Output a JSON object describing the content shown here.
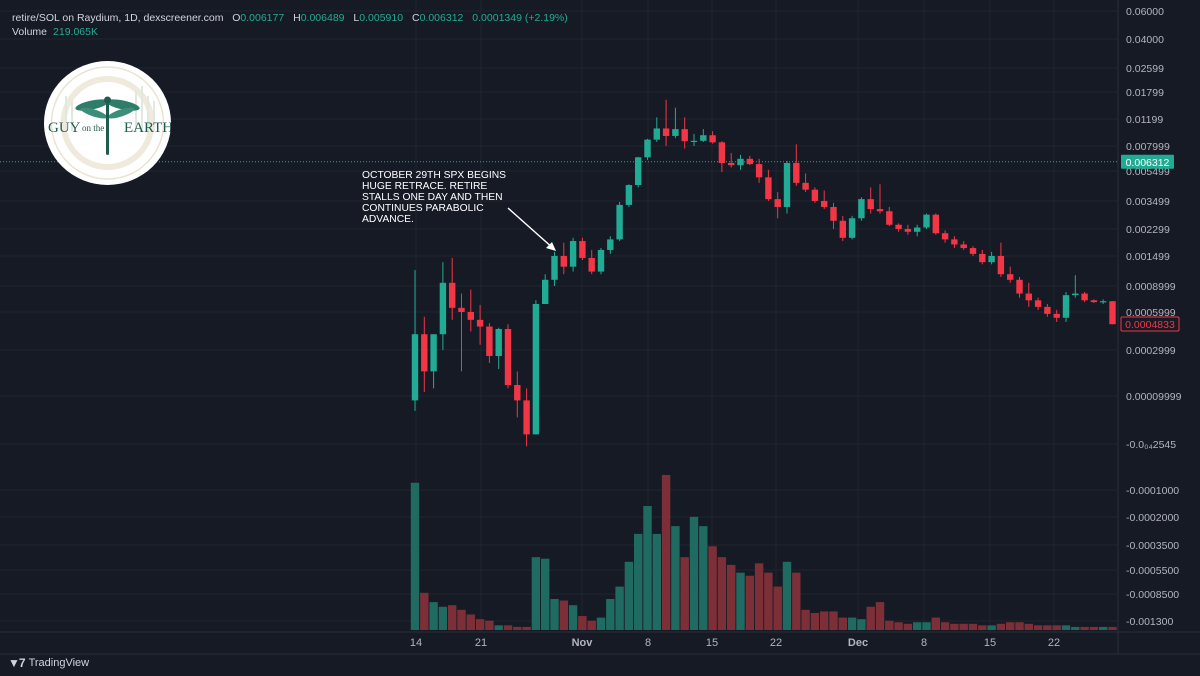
{
  "header": {
    "title": "retire/SOL on Raydium, 1D, dexscreener.com",
    "o_label": "O",
    "o_value": "0.006177",
    "h_label": "H",
    "h_value": "0.006489",
    "l_label": "L",
    "l_value": "0.005910",
    "c_label": "C",
    "c_value": "0.006312",
    "change": "0.0001349 (+2.19%)",
    "volume_label": "Volume",
    "volume_value": "219.065K"
  },
  "logo": {
    "text_left": "GUY",
    "text_mid": "on the",
    "text_right": "EARTH"
  },
  "annotation": "OCTOBER 29TH SPX BEGINS HUGE RETRACE. RETIRE STALLS ONE DAY AND THEN CONTINUES PARABOLIC ADVANCE.",
  "footer": {
    "brand": "TradingView",
    "brand_icon": "tradingview-logo-icon"
  },
  "colors": {
    "up": "#22ab94",
    "down": "#f23645",
    "up_vol": "#1f6b61",
    "down_vol": "#7d2f37",
    "bg": "#161a25",
    "grid": "#1f2430",
    "text": "#b2b5be"
  },
  "chart_data": {
    "type": "candlestick",
    "price_axis_labels": [
      "0.06000",
      "0.04000",
      "0.02599",
      "0.01799",
      "0.01199",
      "0.007999",
      "0.005499",
      "0.003499",
      "0.002299",
      "0.001499",
      "0.0008999",
      "0.0005999",
      "0.0002999",
      "0.00009999",
      "-0.0₀₄2545"
    ],
    "volume_axis_labels": [
      "-0.0001000",
      "-0.0002000",
      "-0.0003500",
      "-0.0005500",
      "-0.0008500",
      "-0.001300"
    ],
    "last_price_label": "0.006312",
    "current_price_label": "0.0004833",
    "x_tick_labels": [
      "14",
      "21",
      "Nov",
      "8",
      "15",
      "22",
      "Dec",
      "8",
      "15",
      "22"
    ],
    "candles": [
      {
        "o": 9e-05,
        "h": 0.00118,
        "l": 7e-05,
        "c": 0.0004
      },
      {
        "o": 0.0004,
        "h": 0.00055,
        "l": 0.00011,
        "c": 0.00018
      },
      {
        "o": 0.00018,
        "h": 0.00039,
        "l": 0.00012,
        "c": 0.0004
      },
      {
        "o": 0.0004,
        "h": 0.00135,
        "l": 0.0003,
        "c": 0.00095
      },
      {
        "o": 0.00095,
        "h": 0.00145,
        "l": 0.00052,
        "c": 0.00064
      },
      {
        "o": 0.00064,
        "h": 0.0008,
        "l": 0.00018,
        "c": 0.0006
      },
      {
        "o": 0.0006,
        "h": 0.00085,
        "l": 0.00042,
        "c": 0.00052
      },
      {
        "o": 0.00052,
        "h": 0.00067,
        "l": 0.00033,
        "c": 0.00046
      },
      {
        "o": 0.00046,
        "h": 0.00049,
        "l": 0.00022,
        "c": 0.00026
      },
      {
        "o": 0.00026,
        "h": 0.00045,
        "l": 0.00019,
        "c": 0.00044
      },
      {
        "o": 0.00044,
        "h": 0.00048,
        "l": 0.00012,
        "c": 0.00013
      },
      {
        "o": 0.00013,
        "h": 0.00018,
        "l": 6e-05,
        "c": 9e-05
      },
      {
        "o": 9e-05,
        "h": 0.00012,
        "l": 3e-05,
        "c": 4e-05
      },
      {
        "o": 4e-05,
        "h": 0.00072,
        "l": 4e-05,
        "c": 0.00068
      },
      {
        "o": 0.00068,
        "h": 0.0011,
        "l": 0.00068,
        "c": 0.001
      },
      {
        "o": 0.001,
        "h": 0.0016,
        "l": 0.0009,
        "c": 0.0015
      },
      {
        "o": 0.0015,
        "h": 0.00185,
        "l": 0.0011,
        "c": 0.00125
      },
      {
        "o": 0.00125,
        "h": 0.002,
        "l": 0.00115,
        "c": 0.0019
      },
      {
        "o": 0.0019,
        "h": 0.002,
        "l": 0.0014,
        "c": 0.00145
      },
      {
        "o": 0.00145,
        "h": 0.00165,
        "l": 0.0011,
        "c": 0.00115
      },
      {
        "o": 0.00115,
        "h": 0.0017,
        "l": 0.0011,
        "c": 0.00165
      },
      {
        "o": 0.00165,
        "h": 0.00205,
        "l": 0.00155,
        "c": 0.00195
      },
      {
        "o": 0.00195,
        "h": 0.00345,
        "l": 0.0019,
        "c": 0.0033
      },
      {
        "o": 0.0033,
        "h": 0.0045,
        "l": 0.0032,
        "c": 0.00445
      },
      {
        "o": 0.00445,
        "h": 0.0068,
        "l": 0.0043,
        "c": 0.00675
      },
      {
        "o": 0.00675,
        "h": 0.0089,
        "l": 0.0065,
        "c": 0.0088
      },
      {
        "o": 0.0088,
        "h": 0.0123,
        "l": 0.0085,
        "c": 0.0104
      },
      {
        "o": 0.0104,
        "h": 0.016,
        "l": 0.008,
        "c": 0.0093
      },
      {
        "o": 0.0093,
        "h": 0.0142,
        "l": 0.009,
        "c": 0.0103
      },
      {
        "o": 0.0103,
        "h": 0.0123,
        "l": 0.0077,
        "c": 0.0086
      },
      {
        "o": 0.0086,
        "h": 0.0096,
        "l": 0.008,
        "c": 0.00865
      },
      {
        "o": 0.00865,
        "h": 0.0103,
        "l": 0.0085,
        "c": 0.0094
      },
      {
        "o": 0.0094,
        "h": 0.01,
        "l": 0.0083,
        "c": 0.00845
      },
      {
        "o": 0.00845,
        "h": 0.0086,
        "l": 0.0054,
        "c": 0.0062
      },
      {
        "o": 0.0062,
        "h": 0.0072,
        "l": 0.0058,
        "c": 0.006
      },
      {
        "o": 0.006,
        "h": 0.007,
        "l": 0.0056,
        "c": 0.0066
      },
      {
        "o": 0.0066,
        "h": 0.0069,
        "l": 0.006,
        "c": 0.0061
      },
      {
        "o": 0.0061,
        "h": 0.0066,
        "l": 0.0046,
        "c": 0.005
      },
      {
        "o": 0.005,
        "h": 0.0056,
        "l": 0.0035,
        "c": 0.0036
      },
      {
        "o": 0.0036,
        "h": 0.004,
        "l": 0.0027,
        "c": 0.0032
      },
      {
        "o": 0.0032,
        "h": 0.0064,
        "l": 0.0029,
        "c": 0.0062
      },
      {
        "o": 0.0062,
        "h": 0.0082,
        "l": 0.0044,
        "c": 0.0046
      },
      {
        "o": 0.0046,
        "h": 0.0053,
        "l": 0.004,
        "c": 0.00415
      },
      {
        "o": 0.00415,
        "h": 0.0043,
        "l": 0.0034,
        "c": 0.0035
      },
      {
        "o": 0.0035,
        "h": 0.0041,
        "l": 0.0031,
        "c": 0.0032
      },
      {
        "o": 0.0032,
        "h": 0.0034,
        "l": 0.0023,
        "c": 0.0026
      },
      {
        "o": 0.0026,
        "h": 0.0028,
        "l": 0.0019,
        "c": 0.002
      },
      {
        "o": 0.002,
        "h": 0.0028,
        "l": 0.00195,
        "c": 0.0027
      },
      {
        "o": 0.0027,
        "h": 0.0037,
        "l": 0.0026,
        "c": 0.0036
      },
      {
        "o": 0.0036,
        "h": 0.0043,
        "l": 0.0029,
        "c": 0.0031
      },
      {
        "o": 0.0031,
        "h": 0.0045,
        "l": 0.0029,
        "c": 0.003
      },
      {
        "o": 0.003,
        "h": 0.0032,
        "l": 0.0024,
        "c": 0.00245
      },
      {
        "o": 0.00245,
        "h": 0.0025,
        "l": 0.0022,
        "c": 0.0023
      },
      {
        "o": 0.0023,
        "h": 0.00245,
        "l": 0.0021,
        "c": 0.0022
      },
      {
        "o": 0.0022,
        "h": 0.00245,
        "l": 0.00205,
        "c": 0.00235
      },
      {
        "o": 0.00235,
        "h": 0.0029,
        "l": 0.0023,
        "c": 0.00285
      },
      {
        "o": 0.00285,
        "h": 0.0029,
        "l": 0.0021,
        "c": 0.00215
      },
      {
        "o": 0.00215,
        "h": 0.00225,
        "l": 0.00185,
        "c": 0.00195
      },
      {
        "o": 0.00195,
        "h": 0.00205,
        "l": 0.0017,
        "c": 0.0018
      },
      {
        "o": 0.0018,
        "h": 0.0019,
        "l": 0.00165,
        "c": 0.0017
      },
      {
        "o": 0.0017,
        "h": 0.00175,
        "l": 0.0015,
        "c": 0.00155
      },
      {
        "o": 0.00155,
        "h": 0.00165,
        "l": 0.0013,
        "c": 0.00135
      },
      {
        "o": 0.00135,
        "h": 0.0016,
        "l": 0.0013,
        "c": 0.0015
      },
      {
        "o": 0.0015,
        "h": 0.00185,
        "l": 0.00105,
        "c": 0.0011
      },
      {
        "o": 0.0011,
        "h": 0.00125,
        "l": 0.00095,
        "c": 0.001
      },
      {
        "o": 0.001,
        "h": 0.00105,
        "l": 0.00075,
        "c": 0.0008
      },
      {
        "o": 0.0008,
        "h": 0.00095,
        "l": 0.00065,
        "c": 0.00072
      },
      {
        "o": 0.00072,
        "h": 0.00075,
        "l": 0.00062,
        "c": 0.00065
      },
      {
        "o": 0.00065,
        "h": 0.00068,
        "l": 0.00055,
        "c": 0.00058
      },
      {
        "o": 0.00058,
        "h": 0.00062,
        "l": 0.0005,
        "c": 0.00054
      },
      {
        "o": 0.00054,
        "h": 0.00082,
        "l": 0.0005,
        "c": 0.00078
      },
      {
        "o": 0.00078,
        "h": 0.00108,
        "l": 0.00075,
        "c": 0.0008
      },
      {
        "o": 0.0008,
        "h": 0.00082,
        "l": 0.0007,
        "c": 0.00072
      },
      {
        "o": 0.00072,
        "h": 0.00073,
        "l": 0.00069,
        "c": 0.0007
      },
      {
        "o": 0.0007,
        "h": 0.00073,
        "l": 0.00068,
        "c": 0.00071
      },
      {
        "o": 0.00071,
        "h": 0.00071,
        "l": 0.00048,
        "c": 0.00048
      }
    ],
    "volumes": [
      0.95,
      0.24,
      0.18,
      0.15,
      0.16,
      0.13,
      0.1,
      0.07,
      0.06,
      0.03,
      0.03,
      0.02,
      0.02,
      0.47,
      0.46,
      0.2,
      0.19,
      0.16,
      0.09,
      0.06,
      0.08,
      0.2,
      0.28,
      0.44,
      0.62,
      0.8,
      0.62,
      1.0,
      0.67,
      0.47,
      0.73,
      0.67,
      0.54,
      0.47,
      0.42,
      0.37,
      0.35,
      0.43,
      0.37,
      0.28,
      0.44,
      0.37,
      0.13,
      0.11,
      0.12,
      0.12,
      0.08,
      0.08,
      0.07,
      0.15,
      0.18,
      0.06,
      0.05,
      0.04,
      0.05,
      0.05,
      0.08,
      0.05,
      0.04,
      0.04,
      0.04,
      0.03,
      0.03,
      0.04,
      0.05,
      0.05,
      0.04,
      0.03,
      0.03,
      0.03,
      0.03,
      0.02,
      0.02,
      0.02,
      0.02,
      0.02
    ]
  }
}
